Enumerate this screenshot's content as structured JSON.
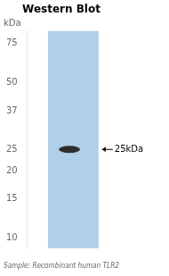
{
  "chart_data": {
    "type": "blot",
    "title": "Western Blot",
    "xlabel": "Sample: Recombinant human TLR2",
    "ylabel": "kDa",
    "values": [
      25
    ],
    "value_labels": [
      "25kDa"
    ],
    "data_labels": true,
    "color": "#b0cfe8",
    "colors": [
      "#2d2d2d"
    ],
    "log": "y",
    "ylim": [
      9,
      85
    ],
    "yticks": [
      75,
      50,
      37,
      25,
      20,
      15,
      10
    ],
    "grid": false,
    "tick_labels": "y"
  }
}
